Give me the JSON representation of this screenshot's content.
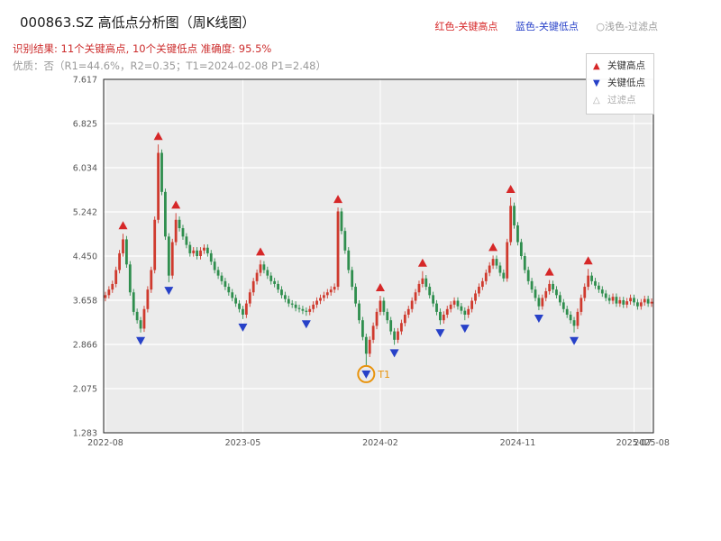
{
  "header": {
    "title": "000863.SZ 高低点分析图（周K线图）",
    "legend_top": {
      "high": "红色-关键高点",
      "low": "蓝色-关键低点",
      "filter": "○浅色-过滤点"
    },
    "result_line": "识别结果: 11个关键高点, 10个关键低点  准确度: 95.5%",
    "quality_line": "优质：否（R1=44.6%，R2=0.35；T1=2024-02-08 P1=2.48）",
    "colors": {
      "result": "#cc2c2c",
      "quality": "#999999"
    }
  },
  "legend_box": {
    "items": [
      {
        "label": "关键高点",
        "glyph": "▲",
        "color_key": "high_marker"
      },
      {
        "label": "关键低点",
        "glyph": "▼",
        "color_key": "low_marker"
      },
      {
        "label": "过滤点",
        "glyph": "△",
        "color_key": "filter_marker"
      }
    ]
  },
  "chart_data": {
    "type": "candlestick",
    "title": "000863.SZ 高低点分析图（周K线图）",
    "x_start": "2022-08",
    "x_freq": "weekly",
    "ylim": [
      1.283,
      7.617
    ],
    "yticks": [
      1.283,
      2.075,
      2.866,
      3.658,
      4.45,
      5.242,
      6.034,
      6.825,
      7.617
    ],
    "xticks": [
      {
        "week": 0,
        "label": "2022-08"
      },
      {
        "week": 39,
        "label": "2023-05"
      },
      {
        "week": 78,
        "label": "2024-02"
      },
      {
        "week": 117,
        "label": "2024-11"
      },
      {
        "week": 150,
        "label": "2025-07"
      },
      {
        "week": 155,
        "label": "2025-08"
      }
    ],
    "colors": {
      "up": "#cf3a2e",
      "down": "#2f8e4e",
      "high_marker": "#d62728",
      "low_marker": "#2741c8",
      "filter_marker": "#aaaaaa",
      "t1": "#e8930c",
      "plot_bg": "#ebebeb",
      "grid": "#ffffff",
      "tick": "#555555",
      "border": "#222222"
    },
    "ohlc": [
      [
        3.7,
        3.81,
        3.64,
        3.75
      ],
      [
        3.75,
        3.91,
        3.69,
        3.85
      ],
      [
        3.85,
        4.01,
        3.79,
        3.95
      ],
      [
        3.95,
        4.26,
        3.89,
        4.2
      ],
      [
        4.2,
        4.56,
        4.14,
        4.5
      ],
      [
        4.5,
        4.85,
        4.44,
        4.75
      ],
      [
        4.75,
        4.81,
        4.24,
        4.3
      ],
      [
        4.3,
        4.36,
        3.74,
        3.8
      ],
      [
        3.8,
        3.86,
        3.39,
        3.45
      ],
      [
        3.45,
        3.51,
        3.24,
        3.3
      ],
      [
        3.3,
        3.36,
        3.08,
        3.15
      ],
      [
        3.15,
        3.56,
        3.09,
        3.5
      ],
      [
        3.5,
        3.91,
        3.44,
        3.85
      ],
      [
        3.85,
        4.26,
        3.79,
        4.2
      ],
      [
        4.2,
        5.16,
        4.14,
        5.1
      ],
      [
        5.1,
        6.45,
        5.04,
        6.3
      ],
      [
        6.3,
        6.36,
        5.54,
        5.6
      ],
      [
        5.6,
        5.66,
        4.74,
        4.8
      ],
      [
        4.8,
        4.86,
        3.98,
        4.1
      ],
      [
        4.1,
        4.76,
        4.04,
        4.7
      ],
      [
        4.7,
        5.22,
        4.64,
        5.1
      ],
      [
        5.1,
        5.16,
        4.89,
        4.95
      ],
      [
        4.95,
        5.01,
        4.74,
        4.8
      ],
      [
        4.8,
        4.86,
        4.59,
        4.65
      ],
      [
        4.65,
        4.71,
        4.44,
        4.5
      ],
      [
        4.5,
        4.61,
        4.44,
        4.55
      ],
      [
        4.55,
        4.61,
        4.39,
        4.45
      ],
      [
        4.45,
        4.61,
        4.39,
        4.55
      ],
      [
        4.55,
        4.66,
        4.49,
        4.6
      ],
      [
        4.6,
        4.66,
        4.44,
        4.5
      ],
      [
        4.5,
        4.56,
        4.29,
        4.35
      ],
      [
        4.35,
        4.41,
        4.14,
        4.2
      ],
      [
        4.2,
        4.26,
        4.04,
        4.1
      ],
      [
        4.1,
        4.16,
        3.94,
        4.0
      ],
      [
        4.0,
        4.06,
        3.84,
        3.9
      ],
      [
        3.9,
        3.96,
        3.74,
        3.8
      ],
      [
        3.8,
        3.86,
        3.64,
        3.7
      ],
      [
        3.7,
        3.76,
        3.54,
        3.6
      ],
      [
        3.6,
        3.66,
        3.44,
        3.5
      ],
      [
        3.5,
        3.56,
        3.32,
        3.4
      ],
      [
        3.4,
        3.66,
        3.34,
        3.6
      ],
      [
        3.6,
        3.86,
        3.54,
        3.8
      ],
      [
        3.8,
        4.06,
        3.74,
        4.0
      ],
      [
        4.0,
        4.21,
        3.94,
        4.15
      ],
      [
        4.15,
        4.38,
        4.09,
        4.3
      ],
      [
        4.3,
        4.36,
        4.14,
        4.2
      ],
      [
        4.2,
        4.26,
        4.04,
        4.1
      ],
      [
        4.1,
        4.16,
        3.94,
        4.0
      ],
      [
        4.0,
        4.06,
        3.89,
        3.95
      ],
      [
        3.95,
        4.01,
        3.79,
        3.85
      ],
      [
        3.85,
        3.91,
        3.69,
        3.75
      ],
      [
        3.75,
        3.81,
        3.62,
        3.68
      ],
      [
        3.68,
        3.74,
        3.54,
        3.6
      ],
      [
        3.6,
        3.66,
        3.52,
        3.58
      ],
      [
        3.58,
        3.64,
        3.46,
        3.52
      ],
      [
        3.52,
        3.58,
        3.44,
        3.5
      ],
      [
        3.5,
        3.56,
        3.41,
        3.47
      ],
      [
        3.47,
        3.53,
        3.38,
        3.45
      ],
      [
        3.45,
        3.56,
        3.39,
        3.5
      ],
      [
        3.5,
        3.64,
        3.44,
        3.58
      ],
      [
        3.58,
        3.71,
        3.52,
        3.65
      ],
      [
        3.65,
        3.76,
        3.59,
        3.7
      ],
      [
        3.7,
        3.81,
        3.64,
        3.75
      ],
      [
        3.75,
        3.86,
        3.69,
        3.8
      ],
      [
        3.8,
        3.91,
        3.74,
        3.85
      ],
      [
        3.85,
        3.96,
        3.79,
        3.9
      ],
      [
        3.9,
        5.32,
        3.84,
        5.25
      ],
      [
        5.25,
        5.31,
        4.84,
        4.9
      ],
      [
        4.9,
        4.96,
        4.49,
        4.55
      ],
      [
        4.55,
        4.61,
        4.14,
        4.2
      ],
      [
        4.2,
        4.26,
        3.84,
        3.9
      ],
      [
        3.9,
        3.96,
        3.54,
        3.6
      ],
      [
        3.6,
        3.66,
        3.24,
        3.3
      ],
      [
        3.3,
        3.36,
        2.94,
        3.0
      ],
      [
        3.0,
        3.06,
        2.48,
        2.7
      ],
      [
        2.7,
        3.01,
        2.64,
        2.95
      ],
      [
        2.95,
        3.26,
        2.89,
        3.2
      ],
      [
        3.2,
        3.51,
        3.14,
        3.45
      ],
      [
        3.45,
        3.74,
        3.39,
        3.65
      ],
      [
        3.65,
        3.71,
        3.39,
        3.45
      ],
      [
        3.45,
        3.51,
        3.24,
        3.3
      ],
      [
        3.3,
        3.36,
        3.04,
        3.1
      ],
      [
        3.1,
        3.16,
        2.86,
        2.95
      ],
      [
        2.95,
        3.16,
        2.89,
        3.1
      ],
      [
        3.1,
        3.31,
        3.04,
        3.25
      ],
      [
        3.25,
        3.46,
        3.19,
        3.4
      ],
      [
        3.4,
        3.56,
        3.34,
        3.5
      ],
      [
        3.5,
        3.71,
        3.44,
        3.65
      ],
      [
        3.65,
        3.86,
        3.59,
        3.8
      ],
      [
        3.8,
        4.01,
        3.74,
        3.95
      ],
      [
        3.95,
        4.18,
        3.89,
        4.05
      ],
      [
        4.05,
        4.11,
        3.84,
        3.9
      ],
      [
        3.9,
        3.96,
        3.69,
        3.75
      ],
      [
        3.75,
        3.81,
        3.54,
        3.6
      ],
      [
        3.6,
        3.66,
        3.39,
        3.45
      ],
      [
        3.45,
        3.51,
        3.22,
        3.3
      ],
      [
        3.3,
        3.46,
        3.24,
        3.4
      ],
      [
        3.4,
        3.56,
        3.34,
        3.5
      ],
      [
        3.5,
        3.64,
        3.44,
        3.58
      ],
      [
        3.58,
        3.71,
        3.52,
        3.65
      ],
      [
        3.65,
        3.71,
        3.49,
        3.55
      ],
      [
        3.55,
        3.61,
        3.41,
        3.47
      ],
      [
        3.47,
        3.53,
        3.3,
        3.4
      ],
      [
        3.4,
        3.56,
        3.34,
        3.5
      ],
      [
        3.5,
        3.71,
        3.44,
        3.65
      ],
      [
        3.65,
        3.84,
        3.59,
        3.78
      ],
      [
        3.78,
        3.96,
        3.72,
        3.9
      ],
      [
        3.9,
        4.06,
        3.84,
        4.0
      ],
      [
        4.0,
        4.21,
        3.94,
        4.15
      ],
      [
        4.15,
        4.34,
        4.09,
        4.28
      ],
      [
        4.28,
        4.46,
        4.22,
        4.4
      ],
      [
        4.4,
        4.46,
        4.22,
        4.28
      ],
      [
        4.28,
        4.34,
        4.09,
        4.15
      ],
      [
        4.15,
        4.21,
        3.99,
        4.05
      ],
      [
        4.05,
        4.76,
        3.99,
        4.7
      ],
      [
        4.7,
        5.5,
        4.64,
        5.35
      ],
      [
        5.35,
        5.41,
        4.94,
        5.0
      ],
      [
        5.0,
        5.06,
        4.64,
        4.7
      ],
      [
        4.7,
        4.76,
        4.39,
        4.45
      ],
      [
        4.45,
        4.51,
        4.14,
        4.2
      ],
      [
        4.2,
        4.26,
        3.94,
        4.0
      ],
      [
        4.0,
        4.06,
        3.79,
        3.85
      ],
      [
        3.85,
        3.91,
        3.64,
        3.7
      ],
      [
        3.7,
        3.76,
        3.48,
        3.55
      ],
      [
        3.55,
        3.76,
        3.49,
        3.7
      ],
      [
        3.7,
        3.88,
        3.64,
        3.82
      ],
      [
        3.82,
        4.02,
        3.76,
        3.95
      ],
      [
        3.95,
        4.01,
        3.79,
        3.85
      ],
      [
        3.85,
        3.91,
        3.69,
        3.75
      ],
      [
        3.75,
        3.81,
        3.56,
        3.62
      ],
      [
        3.62,
        3.68,
        3.44,
        3.5
      ],
      [
        3.5,
        3.56,
        3.34,
        3.4
      ],
      [
        3.4,
        3.46,
        3.24,
        3.3
      ],
      [
        3.3,
        3.36,
        3.08,
        3.2
      ],
      [
        3.2,
        3.51,
        3.14,
        3.45
      ],
      [
        3.45,
        3.76,
        3.39,
        3.7
      ],
      [
        3.7,
        3.96,
        3.64,
        3.9
      ],
      [
        3.9,
        4.22,
        3.84,
        4.1
      ],
      [
        4.1,
        4.16,
        3.94,
        4.0
      ],
      [
        4.0,
        4.06,
        3.86,
        3.92
      ],
      [
        3.92,
        3.98,
        3.79,
        3.85
      ],
      [
        3.85,
        3.91,
        3.72,
        3.78
      ],
      [
        3.78,
        3.84,
        3.64,
        3.7
      ],
      [
        3.7,
        3.76,
        3.59,
        3.65
      ],
      [
        3.65,
        3.78,
        3.59,
        3.72
      ],
      [
        3.72,
        3.78,
        3.54,
        3.6
      ],
      [
        3.6,
        3.72,
        3.54,
        3.66
      ],
      [
        3.66,
        3.72,
        3.52,
        3.58
      ],
      [
        3.58,
        3.7,
        3.52,
        3.64
      ],
      [
        3.64,
        3.76,
        3.58,
        3.7
      ],
      [
        3.7,
        3.76,
        3.56,
        3.62
      ],
      [
        3.62,
        3.68,
        3.49,
        3.55
      ],
      [
        3.55,
        3.68,
        3.49,
        3.62
      ],
      [
        3.62,
        3.74,
        3.56,
        3.68
      ],
      [
        3.68,
        3.74,
        3.54,
        3.6
      ],
      [
        3.6,
        3.69,
        3.54,
        3.63
      ]
    ],
    "high_markers": [
      {
        "week": 5,
        "price": 4.85
      },
      {
        "week": 15,
        "price": 6.45
      },
      {
        "week": 20,
        "price": 5.22
      },
      {
        "week": 44,
        "price": 4.38
      },
      {
        "week": 66,
        "price": 5.32
      },
      {
        "week": 78,
        "price": 3.74
      },
      {
        "week": 90,
        "price": 4.18
      },
      {
        "week": 110,
        "price": 4.46
      },
      {
        "week": 115,
        "price": 5.5
      },
      {
        "week": 126,
        "price": 4.02
      },
      {
        "week": 137,
        "price": 4.22
      }
    ],
    "low_markers": [
      {
        "week": 10,
        "price": 3.08
      },
      {
        "week": 18,
        "price": 3.98
      },
      {
        "week": 39,
        "price": 3.32
      },
      {
        "week": 57,
        "price": 3.38
      },
      {
        "week": 74,
        "price": 2.48
      },
      {
        "week": 82,
        "price": 2.86
      },
      {
        "week": 95,
        "price": 3.22
      },
      {
        "week": 102,
        "price": 3.3
      },
      {
        "week": 123,
        "price": 3.48
      },
      {
        "week": 133,
        "price": 3.08
      }
    ],
    "t1_annotation": {
      "week": 74,
      "price": 2.48,
      "label": "T1"
    }
  }
}
